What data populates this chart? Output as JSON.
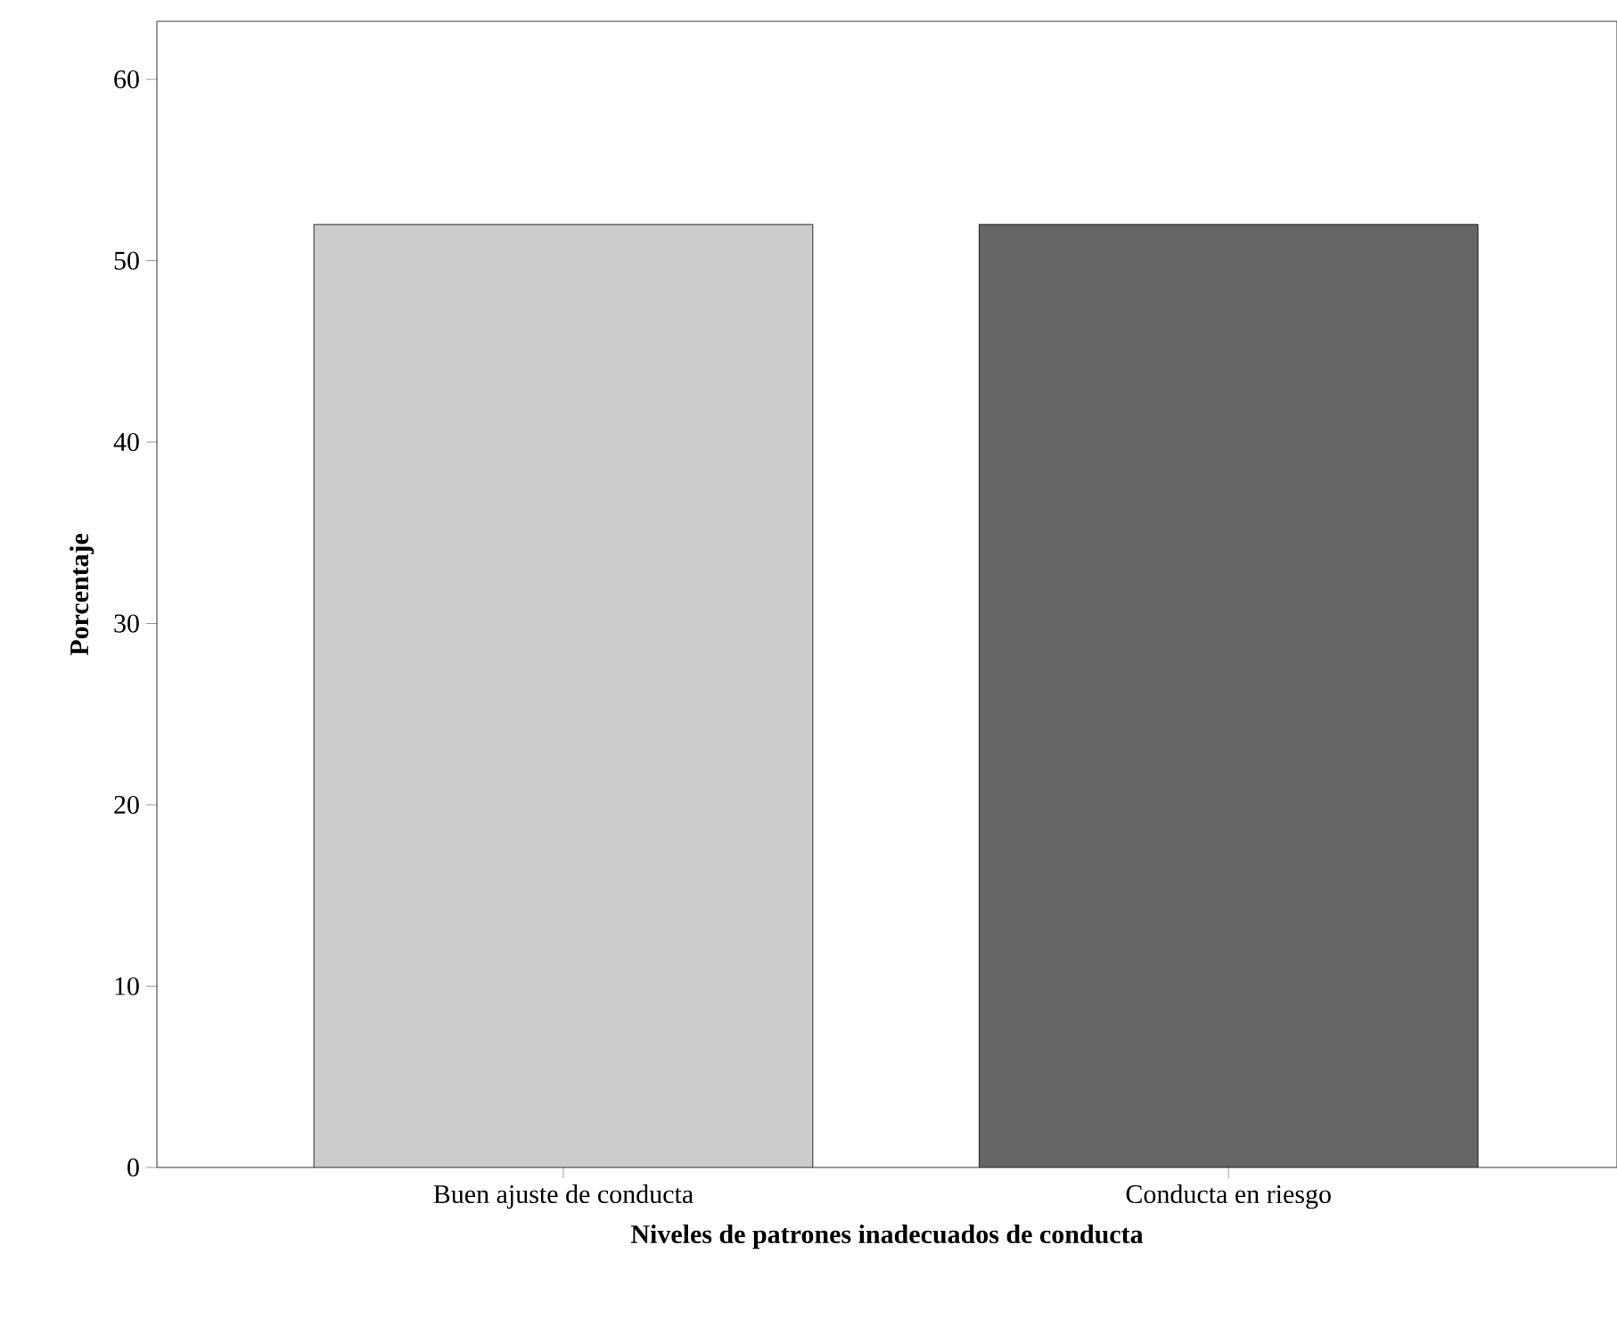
{
  "chart_data": {
    "type": "bar",
    "xlabel": "Niveles de patrones inadecuados de conducta",
    "ylabel": "Porcentaje",
    "categories": [
      "Buen ajuste de conducta",
      "Conducta en riesgo"
    ],
    "values": [
      52,
      52
    ],
    "colors": [
      "#cccccc",
      "#666666"
    ],
    "ylim": [
      0,
      63.2
    ],
    "yticks": [
      0,
      10,
      20,
      30,
      40,
      50,
      60
    ]
  }
}
